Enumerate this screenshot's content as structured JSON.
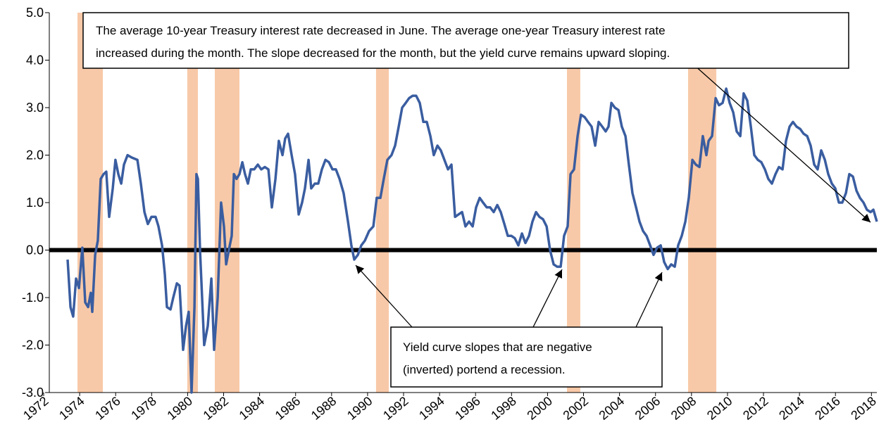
{
  "chart_data": {
    "type": "line",
    "series": [
      {
        "color": "#3a5da0",
        "x": [
          1973.33,
          1973.49,
          1973.64,
          1973.8,
          1973.96,
          1974.15,
          1974.31,
          1974.47,
          1974.62,
          1974.7,
          1974.86,
          1975.01,
          1975.17,
          1975.33,
          1975.48,
          1975.64,
          1975.84,
          1975.99,
          1976.15,
          1976.31,
          1976.46,
          1976.66,
          1976.89,
          1977.21,
          1977.4,
          1977.6,
          1977.79,
          1977.99,
          1978.22,
          1978.38,
          1978.58,
          1978.73,
          1978.85,
          1979.05,
          1979.2,
          1979.4,
          1979.55,
          1979.75,
          1979.91,
          1980.06,
          1980.22,
          1980.38,
          1980.49,
          1980.57,
          1980.69,
          1980.92,
          1981.12,
          1981.32,
          1981.47,
          1981.67,
          1981.86,
          1982.02,
          1982.14,
          1982.29,
          1982.45,
          1982.57,
          1982.72,
          1982.88,
          1983.04,
          1983.19,
          1983.35,
          1983.51,
          1983.7,
          1983.9,
          1984.09,
          1984.29,
          1984.49,
          1984.68,
          1984.88,
          1985.07,
          1985.27,
          1985.42,
          1985.58,
          1985.78,
          1985.97,
          1986.17,
          1986.36,
          1986.52,
          1986.72,
          1986.87,
          1987.07,
          1987.26,
          1987.46,
          1987.66,
          1987.85,
          1988.05,
          1988.24,
          1988.44,
          1988.67,
          1988.91,
          1989.1,
          1989.26,
          1989.46,
          1989.65,
          1989.85,
          1990.08,
          1990.32,
          1990.51,
          1990.71,
          1990.9,
          1991.1,
          1991.33,
          1991.53,
          1991.73,
          1991.92,
          1992.12,
          1992.31,
          1992.51,
          1992.7,
          1992.9,
          1993.1,
          1993.29,
          1993.49,
          1993.68,
          1993.88,
          1994.07,
          1994.27,
          1994.47,
          1994.66,
          1994.86,
          1995.05,
          1995.25,
          1995.44,
          1995.64,
          1995.84,
          1996.03,
          1996.23,
          1996.42,
          1996.62,
          1996.81,
          1997.01,
          1997.21,
          1997.4,
          1997.6,
          1997.79,
          1997.99,
          1998.18,
          1998.38,
          1998.58,
          1998.77,
          1998.97,
          1999.16,
          1999.36,
          1999.55,
          1999.75,
          1999.95,
          2000.14,
          2000.34,
          2000.53,
          2000.73,
          2000.92,
          2001.12,
          2001.28,
          2001.47,
          2001.67,
          2001.86,
          2002.06,
          2002.25,
          2002.45,
          2002.65,
          2002.84,
          2003.04,
          2003.23,
          2003.39,
          2003.55,
          2003.74,
          2003.94,
          2004.13,
          2004.33,
          2004.52,
          2004.72,
          2004.92,
          2005.11,
          2005.31,
          2005.5,
          2005.7,
          2005.89,
          2006.09,
          2006.29,
          2006.48,
          2006.68,
          2006.87,
          2007.07,
          2007.26,
          2007.46,
          2007.66,
          2007.85,
          2008.05,
          2008.24,
          2008.44,
          2008.63,
          2008.83,
          2008.95,
          2009.14,
          2009.34,
          2009.53,
          2009.73,
          2009.93,
          2010.12,
          2010.32,
          2010.51,
          2010.71,
          2010.9,
          2011.1,
          2011.3,
          2011.49,
          2011.69,
          2011.88,
          2012.08,
          2012.27,
          2012.47,
          2012.67,
          2012.86,
          2013.06,
          2013.25,
          2013.45,
          2013.64,
          2013.84,
          2014.04,
          2014.23,
          2014.43,
          2014.62,
          2014.82,
          2015.01,
          2015.21,
          2015.41,
          2015.6,
          2015.8,
          2015.99,
          2016.19,
          2016.38,
          2016.58,
          2016.77,
          2016.97,
          2017.17,
          2017.36,
          2017.56,
          2017.75,
          2017.95,
          2018.11,
          2018.3
        ],
        "values": [
          -0.2,
          -1.2,
          -1.4,
          -0.6,
          -0.8,
          0.05,
          -1.1,
          -1.2,
          -0.9,
          -1.3,
          -0.1,
          0.2,
          1.5,
          1.6,
          1.65,
          0.7,
          1.3,
          1.9,
          1.6,
          1.4,
          1.8,
          2.0,
          1.95,
          1.9,
          1.4,
          0.8,
          0.55,
          0.7,
          0.7,
          0.5,
          0.1,
          -0.5,
          -1.2,
          -1.25,
          -1.0,
          -0.7,
          -0.75,
          -2.1,
          -1.6,
          -1.3,
          -3.0,
          -1.2,
          1.6,
          1.5,
          0.0,
          -2.0,
          -1.6,
          -0.6,
          -2.1,
          -1.0,
          1.0,
          0.5,
          -0.3,
          0.0,
          0.3,
          1.6,
          1.5,
          1.6,
          1.85,
          1.6,
          1.4,
          1.7,
          1.7,
          1.8,
          1.7,
          1.75,
          1.7,
          0.9,
          1.5,
          2.3,
          2.0,
          2.35,
          2.45,
          2.0,
          1.6,
          0.75,
          1.0,
          1.3,
          1.9,
          1.3,
          1.4,
          1.4,
          1.7,
          1.9,
          1.85,
          1.7,
          1.7,
          1.5,
          1.2,
          0.6,
          0.1,
          -0.2,
          -0.1,
          0.1,
          0.2,
          0.4,
          0.5,
          1.1,
          1.1,
          1.5,
          1.9,
          2.0,
          2.2,
          2.6,
          3.0,
          3.1,
          3.2,
          3.25,
          3.25,
          3.1,
          2.7,
          2.7,
          2.4,
          2.0,
          2.2,
          2.1,
          1.9,
          1.7,
          1.8,
          0.7,
          0.75,
          0.8,
          0.5,
          0.6,
          0.5,
          0.9,
          1.1,
          1.0,
          0.9,
          0.9,
          0.8,
          0.95,
          0.8,
          0.55,
          0.3,
          0.3,
          0.25,
          0.1,
          0.35,
          0.15,
          0.3,
          0.6,
          0.8,
          0.7,
          0.65,
          0.5,
          0.0,
          -0.3,
          -0.35,
          -0.35,
          0.3,
          0.5,
          1.6,
          1.7,
          2.4,
          2.85,
          2.8,
          2.7,
          2.6,
          2.2,
          2.7,
          2.6,
          2.5,
          2.6,
          3.1,
          3.0,
          2.95,
          2.6,
          2.4,
          1.8,
          1.2,
          0.9,
          0.6,
          0.4,
          0.3,
          0.1,
          -0.1,
          0.05,
          0.1,
          -0.25,
          -0.4,
          -0.3,
          -0.35,
          0.1,
          0.3,
          0.6,
          1.1,
          1.9,
          1.8,
          1.75,
          2.4,
          2.0,
          2.3,
          2.4,
          3.2,
          3.05,
          3.1,
          3.4,
          3.1,
          2.9,
          2.5,
          2.4,
          3.3,
          3.15,
          2.6,
          2.0,
          1.9,
          1.85,
          1.7,
          1.5,
          1.4,
          1.6,
          1.75,
          1.7,
          2.3,
          2.6,
          2.7,
          2.6,
          2.55,
          2.45,
          2.4,
          2.2,
          1.8,
          1.7,
          2.1,
          1.9,
          1.6,
          1.4,
          1.3,
          1.0,
          1.0,
          1.2,
          1.6,
          1.55,
          1.25,
          1.1,
          1.0,
          0.85,
          0.8,
          0.85,
          0.6
        ]
      }
    ],
    "recessions": [
      [
        1973.88,
        1975.29
      ],
      [
        1979.98,
        1980.57
      ],
      [
        1981.51,
        1982.88
      ],
      [
        1990.47,
        1991.18
      ],
      [
        2001.08,
        2001.82
      ],
      [
        2007.81,
        2009.38
      ]
    ],
    "recession_color": "#f8c9a8",
    "xlim": [
      1972,
      2018.3
    ],
    "xticks": [
      1972,
      1974,
      1976,
      1978,
      1980,
      1982,
      1984,
      1986,
      1988,
      1990,
      1992,
      1994,
      1996,
      1998,
      2000,
      2002,
      2004,
      2006,
      2008,
      2010,
      2012,
      2014,
      2016,
      2018
    ],
    "ylim": [
      -3,
      5
    ],
    "yticks": [
      {
        "value": -3,
        "label": "-3.0"
      },
      {
        "value": -2,
        "label": "-2.0"
      },
      {
        "value": -1,
        "label": "-1.0"
      },
      {
        "value": 0,
        "label": "0.0"
      },
      {
        "value": 1,
        "label": "1.0"
      },
      {
        "value": 2,
        "label": "2.0"
      },
      {
        "value": 3,
        "label": "3.0"
      },
      {
        "value": 4,
        "label": "4.0"
      },
      {
        "value": 5,
        "label": "5.0"
      }
    ],
    "annotations": [
      {
        "lines": [
          "The average 10-year Treasury interest rate decreased  in June. The average one-year Treasury interest rate",
          "increased during the month. The slope decreased for the month, but the yield curve remains upward sloping."
        ]
      },
      {
        "lines": [
          "Yield curve slopes that are negative",
          "(inverted) portend a recession."
        ]
      }
    ]
  }
}
